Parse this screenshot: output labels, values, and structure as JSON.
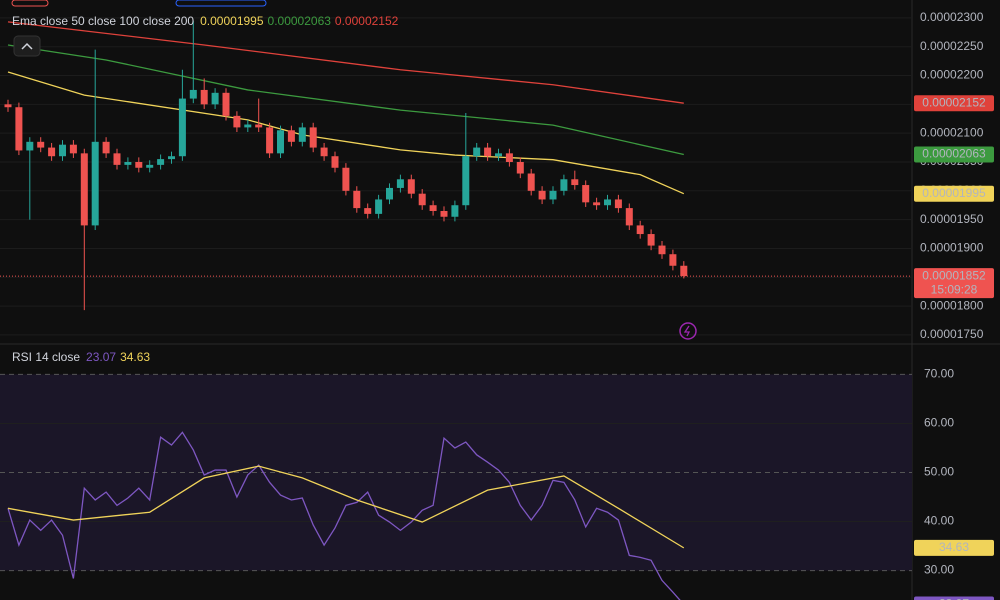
{
  "chart_data": [
    {
      "type": "candlestick",
      "legend_title": "Ema close 50 close 100 close 200",
      "countdown": "15:09:28",
      "up_color": "#26a69a",
      "down_color": "#ef5350",
      "open": [
        2.15e-05,
        2.145e-05,
        2.07e-05,
        2.085e-05,
        2.075e-05,
        2.06e-05,
        2.08e-05,
        2.065e-05,
        1.94e-05,
        2.085e-05,
        2.065e-05,
        2.045e-05,
        2.05e-05,
        2.04e-05,
        2.045e-05,
        2.055e-05,
        2.06e-05,
        2.16e-05,
        2.175e-05,
        2.15e-05,
        2.17e-05,
        2.13e-05,
        2.11e-05,
        2.115e-05,
        2.11e-05,
        2.065e-05,
        2.105e-05,
        2.085e-05,
        2.11e-05,
        2.075e-05,
        2.06e-05,
        2.04e-05,
        2e-05,
        1.97e-05,
        1.96e-05,
        1.985e-05,
        2.005e-05,
        2.02e-05,
        1.995e-05,
        1.975e-05,
        1.965e-05,
        1.955e-05,
        1.975e-05,
        2.06e-05,
        2.075e-05,
        2.06e-05,
        2.065e-05,
        2.05e-05,
        2.03e-05,
        2e-05,
        1.985e-05,
        2e-05,
        2.02e-05,
        2.01e-05,
        1.98e-05,
        1.975e-05,
        1.985e-05,
        1.97e-05,
        1.94e-05,
        1.925e-05,
        1.905e-05,
        1.89e-05,
        1.87e-05
      ],
      "high": [
        2.158e-05,
        2.153e-05,
        2.093e-05,
        2.093e-05,
        2.083e-05,
        2.088e-05,
        2.088e-05,
        2.073e-05,
        2.245e-05,
        2.093e-05,
        2.073e-05,
        2.058e-05,
        2.058e-05,
        2.053e-05,
        2.063e-05,
        2.068e-05,
        2.21e-05,
        2.295e-05,
        2.195e-05,
        2.178e-05,
        2.178e-05,
        2.138e-05,
        2.123e-05,
        2.16e-05,
        2.118e-05,
        2.113e-05,
        2.113e-05,
        2.118e-05,
        2.118e-05,
        2.083e-05,
        2.068e-05,
        2.048e-05,
        2.008e-05,
        1.978e-05,
        1.993e-05,
        2.013e-05,
        2.028e-05,
        2.028e-05,
        2.003e-05,
        1.983e-05,
        1.973e-05,
        1.983e-05,
        2.135e-05,
        2.083e-05,
        2.083e-05,
        2.073e-05,
        2.073e-05,
        2.058e-05,
        2.038e-05,
        2.008e-05,
        2.008e-05,
        2.028e-05,
        2.035e-05,
        2.018e-05,
        1.988e-05,
        1.993e-05,
        1.993e-05,
        1.978e-05,
        1.948e-05,
        1.933e-05,
        1.913e-05,
        1.898e-05,
        1.878e-05
      ],
      "low": [
        2.137e-05,
        2.062e-05,
        1.95e-05,
        2.067e-05,
        2.052e-05,
        2.052e-05,
        2.057e-05,
        1.793e-05,
        1.932e-05,
        2.057e-05,
        2.037e-05,
        2.037e-05,
        2.032e-05,
        2.032e-05,
        2.037e-05,
        2.047e-05,
        2.052e-05,
        2.152e-05,
        2.142e-05,
        2.142e-05,
        2.122e-05,
        2.102e-05,
        2.102e-05,
        2.102e-05,
        2.057e-05,
        2.057e-05,
        2.077e-05,
        2.077e-05,
        2.067e-05,
        2.052e-05,
        2.032e-05,
        1.992e-05,
        1.962e-05,
        1.952e-05,
        1.952e-05,
        1.977e-05,
        1.997e-05,
        1.987e-05,
        1.967e-05,
        1.957e-05,
        1.947e-05,
        1.947e-05,
        1.967e-05,
        2.052e-05,
        2.052e-05,
        2.052e-05,
        2.042e-05,
        2.022e-05,
        1.992e-05,
        1.977e-05,
        1.977e-05,
        1.992e-05,
        2.002e-05,
        1.972e-05,
        1.967e-05,
        1.967e-05,
        1.962e-05,
        1.932e-05,
        1.917e-05,
        1.897e-05,
        1.882e-05,
        1.862e-05,
        1.848e-05
      ],
      "close": [
        2.145e-05,
        2.07e-05,
        2.085e-05,
        2.075e-05,
        2.06e-05,
        2.08e-05,
        2.065e-05,
        1.94e-05,
        2.085e-05,
        2.065e-05,
        2.045e-05,
        2.05e-05,
        2.04e-05,
        2.045e-05,
        2.055e-05,
        2.06e-05,
        2.16e-05,
        2.175e-05,
        2.15e-05,
        2.17e-05,
        2.13e-05,
        2.11e-05,
        2.115e-05,
        2.11e-05,
        2.065e-05,
        2.105e-05,
        2.085e-05,
        2.11e-05,
        2.075e-05,
        2.06e-05,
        2.04e-05,
        2e-05,
        1.97e-05,
        1.96e-05,
        1.985e-05,
        2.005e-05,
        2.02e-05,
        1.995e-05,
        1.975e-05,
        1.965e-05,
        1.955e-05,
        1.975e-05,
        2.06e-05,
        2.075e-05,
        2.06e-05,
        2.065e-05,
        2.05e-05,
        2.03e-05,
        2e-05,
        1.985e-05,
        2e-05,
        2.02e-05,
        2.01e-05,
        1.98e-05,
        1.975e-05,
        1.985e-05,
        1.97e-05,
        1.94e-05,
        1.925e-05,
        1.905e-05,
        1.89e-05,
        1.87e-05,
        1.852e-05
      ],
      "series": [
        {
          "color": "#f0d35a",
          "x": [
            0,
            7,
            22,
            27,
            36,
            41,
            50,
            58,
            62
          ],
          "values": [
            2.206e-05,
            2.166e-05,
            2.123e-05,
            2.097e-05,
            2.071e-05,
            2.062e-05,
            2.054e-05,
            2.028e-05,
            1.995e-05
          ]
        },
        {
          "color": "#3c9a3f",
          "x": [
            0,
            9,
            22,
            36,
            50,
            62
          ],
          "values": [
            2.253e-05,
            2.227e-05,
            2.175e-05,
            2.14e-05,
            2.114e-05,
            2.063e-05
          ]
        },
        {
          "color": "#e0423b",
          "x": [
            0,
            18,
            36,
            50,
            62
          ],
          "values": [
            2.293e-05,
            2.253e-05,
            2.21e-05,
            2.184e-05,
            2.152e-05
          ]
        }
      ],
      "ylim": [
        1.736e-05,
        2.331e-05
      ],
      "yticks": [
        {
          "value": 2.3e-05,
          "label": "0.00002300"
        },
        {
          "value": 2.25e-05,
          "label": "0.00002250"
        },
        {
          "value": 2.2e-05,
          "label": "0.00002200"
        },
        {
          "value": 2.15e-05,
          "label": "0.00002150"
        },
        {
          "value": 2.1e-05,
          "label": "0.00002100"
        },
        {
          "value": 2.05e-05,
          "label": "0.00002050"
        },
        {
          "value": 2e-05,
          "label": "0.00002000"
        },
        {
          "value": 1.95e-05,
          "label": "0.00001950"
        },
        {
          "value": 1.9e-05,
          "label": "0.00001900"
        },
        {
          "value": 1.85e-05,
          "label": "0.00001850"
        },
        {
          "value": 1.8e-05,
          "label": "0.00001800"
        },
        {
          "value": 1.75e-05,
          "label": "0.00001750"
        }
      ],
      "grid": true
    },
    {
      "type": "line",
      "title": "RSI 14 close",
      "series": [
        {
          "color": "#7e57c2",
          "values": [
            42.7,
            35.2,
            40.3,
            38.2,
            40.3,
            37.2,
            28.4,
            46.8,
            44.4,
            46.0,
            43.3,
            44.8,
            46.8,
            44.4,
            57.2,
            55.6,
            58.2,
            54.6,
            49.5,
            50.5,
            50.5,
            45.0,
            49.5,
            51.5,
            48.0,
            45.4,
            44.4,
            44.8,
            39.3,
            35.2,
            38.7,
            43.3,
            43.9,
            46.0,
            41.3,
            39.9,
            38.2,
            39.9,
            42.3,
            43.3,
            57.0,
            55.0,
            56.2,
            53.6,
            52.1,
            50.5,
            48.0,
            43.3,
            40.3,
            43.3,
            48.4,
            48.0,
            44.4,
            38.9,
            42.7,
            41.9,
            40.3,
            33.1,
            32.7,
            32.1,
            28.0,
            25.6,
            23.07
          ]
        },
        {
          "color": "#f0d35a",
          "x": [
            0,
            6,
            13,
            18,
            23,
            27,
            32,
            38,
            44,
            51,
            56,
            62
          ],
          "values": [
            42.7,
            40.3,
            41.9,
            48.9,
            51.3,
            48.9,
            44.4,
            39.9,
            46.4,
            49.3,
            42.7,
            34.63
          ]
        }
      ],
      "ylim": [
        24,
        76
      ],
      "yticks": [
        {
          "value": 70,
          "label": "70.00"
        },
        {
          "value": 60,
          "label": "60.00"
        },
        {
          "value": 50,
          "label": "50.00"
        },
        {
          "value": 40,
          "label": "40.00"
        },
        {
          "value": 30,
          "label": "30.00"
        }
      ],
      "grid": true
    }
  ]
}
